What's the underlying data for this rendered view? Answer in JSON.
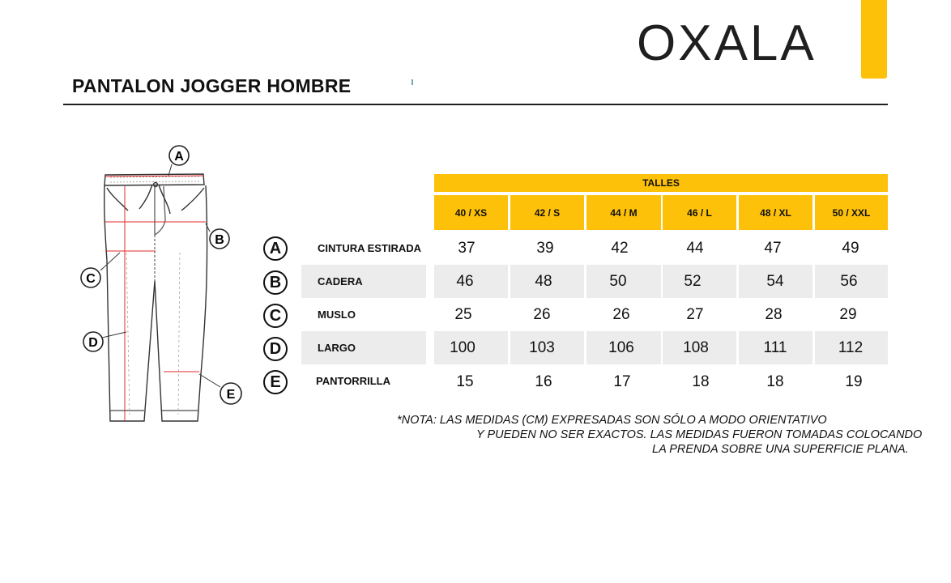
{
  "brand": {
    "logo_text": "OXALA",
    "accent_color": "#fdc10a"
  },
  "page_title": "PANTALON JOGGER HOMBRE",
  "diagram": {
    "markers": [
      "A",
      "B",
      "C",
      "D",
      "E"
    ]
  },
  "table": {
    "group_header": "TALLES",
    "sizes": [
      "40 / XS",
      "42 / S",
      "44 / M",
      "46 / L",
      "48 / XL",
      "50 / XXL"
    ],
    "rows": [
      {
        "letter": "A",
        "label": "CINTURA ESTIRADA",
        "values": [
          "37",
          "39",
          "42",
          "44",
          "47",
          "49"
        ]
      },
      {
        "letter": "B",
        "label": "CADERA",
        "values": [
          "46",
          "48",
          "50",
          "52",
          "54",
          "56"
        ]
      },
      {
        "letter": "C",
        "label": "MUSLO",
        "values": [
          "25",
          "26",
          "26",
          "27",
          "28",
          "29"
        ]
      },
      {
        "letter": "D",
        "label": "LARGO",
        "values": [
          "100",
          "103",
          "106",
          "108",
          "111",
          "112"
        ]
      },
      {
        "letter": "E",
        "label": "PANTORRILLA",
        "values": [
          "15",
          "16",
          "17",
          "18",
          "18",
          "19"
        ]
      }
    ]
  },
  "note": {
    "line1": "*NOTA: LAS MEDIDAS (CM) EXPRESADAS SON SÓLO A MODO ORIENTATIVO",
    "line2": "Y PUEDEN NO SER EXACTOS. LAS MEDIDAS FUERON TOMADAS COLOCANDO",
    "line3": "LA PRENDA SOBRE UNA SUPERFICIE PLANA."
  }
}
